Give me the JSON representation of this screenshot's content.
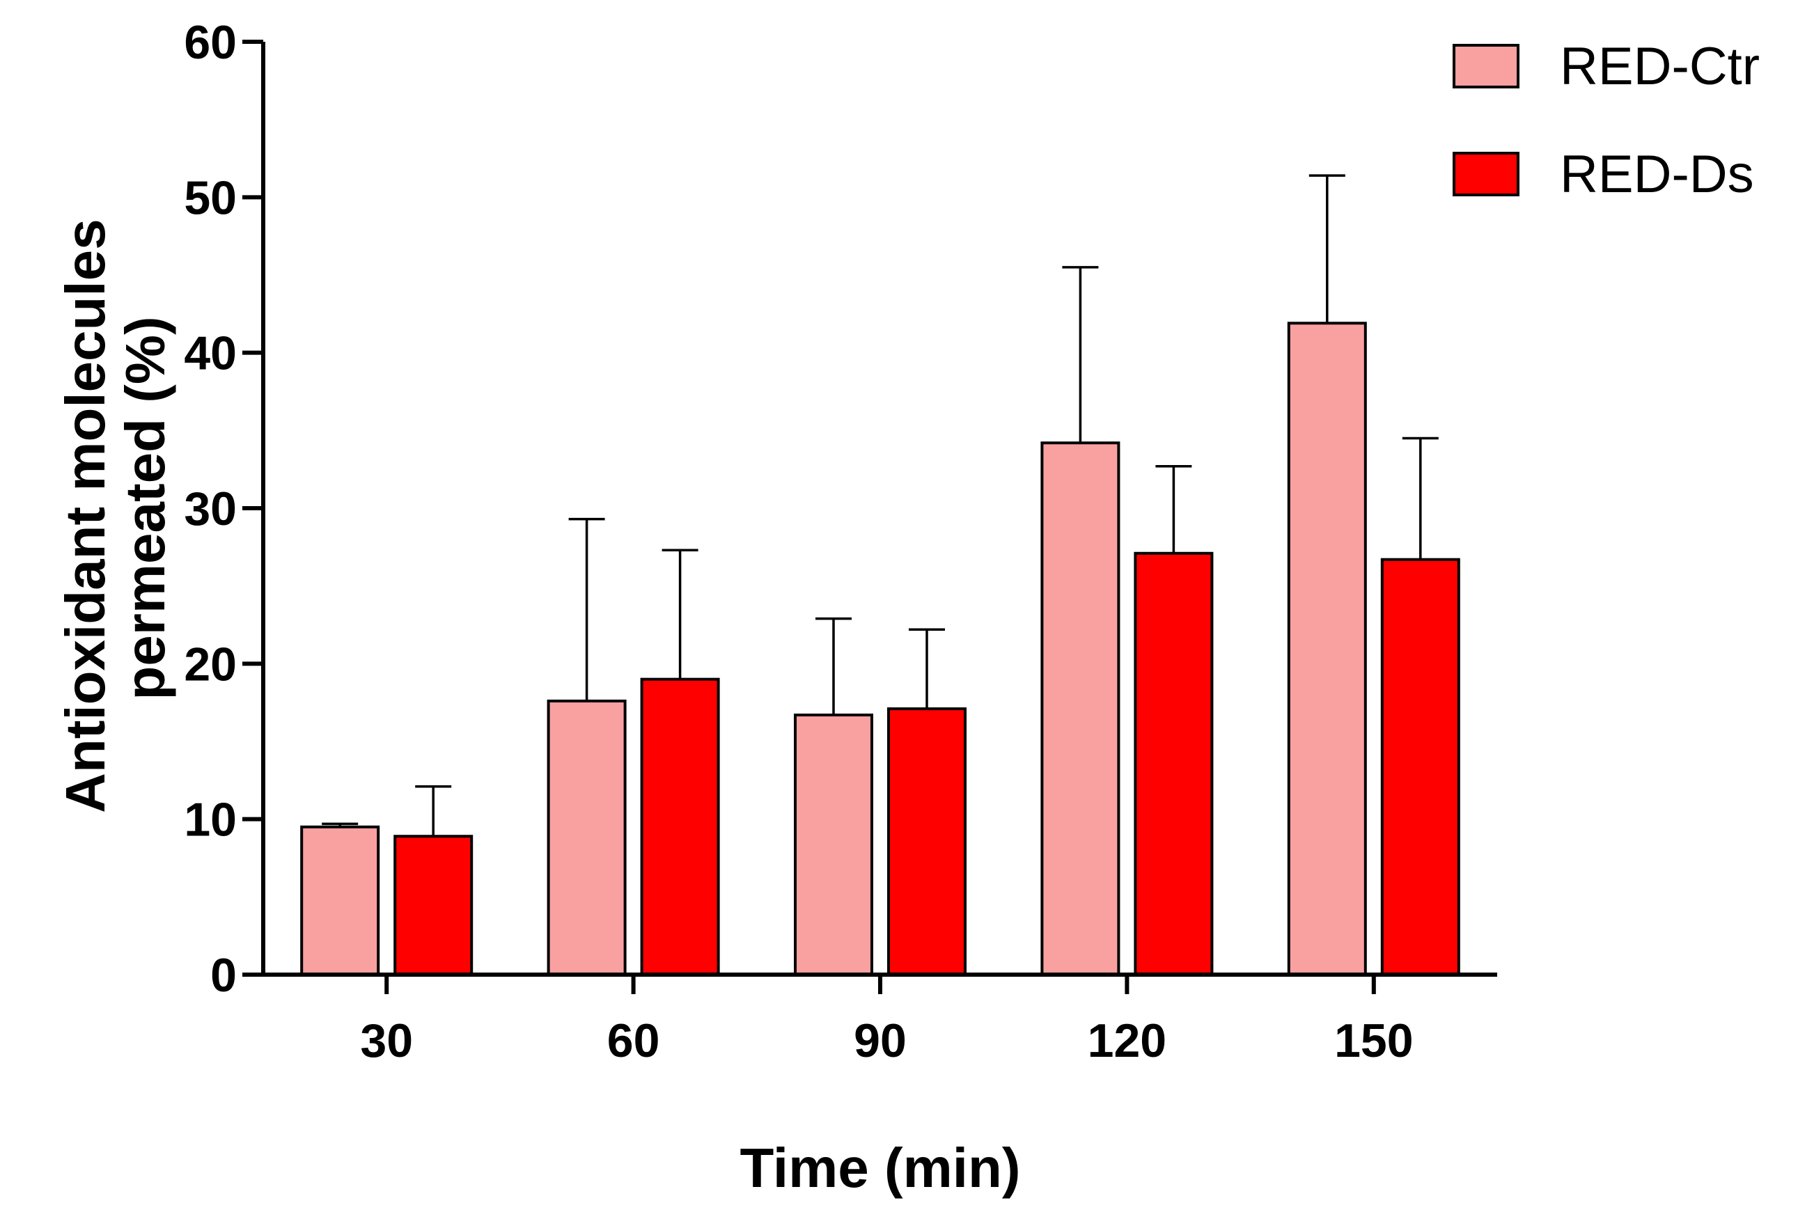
{
  "chart_data": {
    "type": "bar",
    "title": "",
    "xlabel": "Time (min)",
    "ylabel_lines": [
      "Antioxidant molecules",
      "permeated (%)"
    ],
    "categories": [
      "30",
      "60",
      "90",
      "120",
      "150"
    ],
    "series": [
      {
        "name": "RED-Ctr",
        "color": "#F9A0A0",
        "values": [
          9.5,
          17.6,
          16.7,
          34.2,
          41.9
        ],
        "error": [
          0.2,
          11.7,
          6.2,
          11.3,
          9.5
        ]
      },
      {
        "name": "RED-Ds",
        "color": "#FF0000",
        "values": [
          8.9,
          19.0,
          17.1,
          27.1,
          26.7
        ],
        "error": [
          3.2,
          8.3,
          5.1,
          5.6,
          7.8
        ]
      }
    ],
    "ylim": [
      0,
      60
    ],
    "yticks": [
      0,
      10,
      20,
      30,
      40,
      50,
      60
    ],
    "error_bars": "upper",
    "grid": false,
    "legend_position": "top-right"
  }
}
